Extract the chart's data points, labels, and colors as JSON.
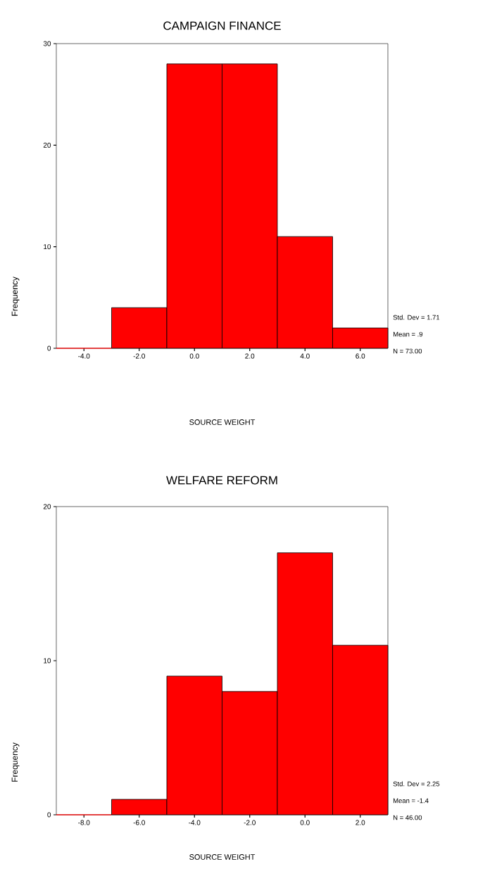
{
  "chart_data": [
    {
      "type": "histogram",
      "title": "CAMPAIGN FINANCE",
      "xlabel": "SOURCE WEIGHT",
      "ylabel": "Frequency",
      "bins": [
        -5,
        -3,
        -1,
        1,
        3,
        5,
        7
      ],
      "values": [
        0,
        4,
        28,
        28,
        11,
        2
      ],
      "color": "#ff0000",
      "xlim": [
        -5,
        7
      ],
      "xticks": [
        {
          "value": -4,
          "label": "-4.0"
        },
        {
          "value": -2,
          "label": "-2.0"
        },
        {
          "value": 0,
          "label": "0.0"
        },
        {
          "value": 2,
          "label": "2.0"
        },
        {
          "value": 4,
          "label": "4.0"
        },
        {
          "value": 6,
          "label": "6.0"
        }
      ],
      "ylim": [
        0,
        30
      ],
      "yticks": [
        0,
        10,
        20,
        30
      ],
      "annotations": [
        "Std. Dev = 1.71",
        "Mean = .9",
        "N = 73.00"
      ]
    },
    {
      "type": "histogram",
      "title": "WELFARE REFORM",
      "xlabel": "SOURCE WEIGHT",
      "ylabel": "Frequency",
      "bins": [
        -9,
        -7,
        -5,
        -3,
        -1,
        1,
        3
      ],
      "values": [
        0,
        1,
        9,
        8,
        17,
        11
      ],
      "color": "#ff0000",
      "xlim": [
        -9,
        3
      ],
      "xticks": [
        {
          "value": -8,
          "label": "-8.0"
        },
        {
          "value": -6,
          "label": "-6.0"
        },
        {
          "value": -4,
          "label": "-4.0"
        },
        {
          "value": -2,
          "label": "-2.0"
        },
        {
          "value": 0,
          "label": "0.0"
        },
        {
          "value": 2,
          "label": "2.0"
        }
      ],
      "ylim": [
        0,
        20
      ],
      "yticks": [
        0,
        10,
        20
      ],
      "annotations": [
        "Std. Dev = 2.25",
        "Mean = -1.4",
        "N = 46.00"
      ]
    }
  ]
}
